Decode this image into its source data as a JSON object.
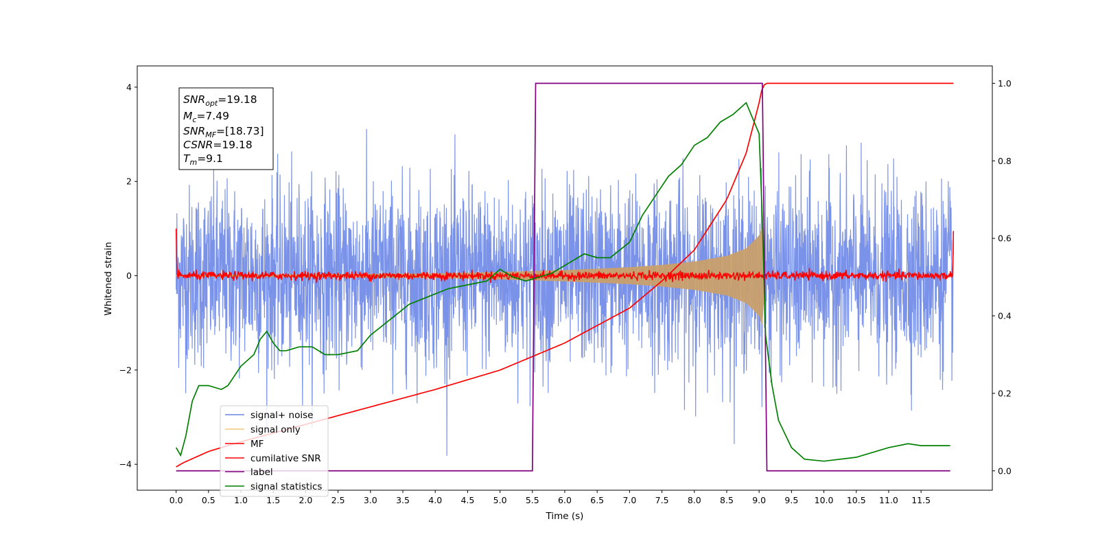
{
  "chart_data": {
    "type": "line",
    "xlabel": "Time (s)",
    "ylabel": "Whitened strain",
    "xlim": [
      -0.6,
      12.6
    ],
    "ylim": [
      -4.55,
      4.45
    ],
    "ylim_right": [
      -0.05,
      1.045
    ],
    "x_ticks": [
      "0.0",
      "0.5",
      "1.0",
      "1.5",
      "2.0",
      "2.5",
      "3.0",
      "3.5",
      "4.0",
      "4.5",
      "5.0",
      "5.5",
      "6.0",
      "6.5",
      "7.0",
      "7.5",
      "8.0",
      "8.5",
      "9.0",
      "9.5",
      "10.0",
      "10.5",
      "11.0",
      "11.5"
    ],
    "y_ticks_left": [
      "−4",
      "−2",
      "0",
      "2",
      "4"
    ],
    "y_ticks_right": [
      "0.0",
      "0.2",
      "0.4",
      "0.6",
      "0.8",
      "1.0"
    ],
    "legend_position": "lower-left",
    "colors": {
      "signal_noise": "#6b86e6",
      "signal_only": "#f5c97a",
      "mf": "#ff0000",
      "cumulative_snr": "#ff0000",
      "label": "#800080",
      "signal_statistics": "#008000"
    },
    "info_box": {
      "line1": {
        "main": "SNR",
        "sub": "opt",
        "value": "=19.18"
      },
      "line2": {
        "main": "M",
        "sub": "c",
        "value": "=7.49"
      },
      "line3": {
        "main": "SNR",
        "sub": "MF",
        "value": "=[18.73]"
      },
      "line4": {
        "main": "CSNR",
        "sub": "",
        "value": "=19.18"
      },
      "line5": {
        "main": "T",
        "sub": "m",
        "value": "=9.1"
      }
    },
    "series": [
      {
        "name": "signal+ noise",
        "axis": "left",
        "description_values": {
          "x_range": [
            0,
            12
          ],
          "approx_amplitude": 3.3
        }
      },
      {
        "name": "signal only",
        "axis": "left",
        "envelope": {
          "x": [
            0,
            2,
            4,
            5,
            6,
            7,
            7.5,
            8,
            8.5,
            8.8,
            9.0,
            9.05,
            9.1
          ],
          "amp": [
            0.02,
            0.03,
            0.05,
            0.08,
            0.12,
            0.18,
            0.23,
            0.3,
            0.42,
            0.58,
            0.85,
            1.05,
            0.0
          ]
        }
      },
      {
        "name": "MF",
        "axis": "left",
        "description_values": {
          "baseline": 0.0,
          "noise_amplitude": 0.08,
          "start_spike": 1.0,
          "end_spike": 0.95
        }
      },
      {
        "name": "cumilative SNR",
        "axis": "right",
        "x": [
          0,
          0.1,
          0.5,
          1.0,
          2.0,
          3.0,
          4.0,
          5.0,
          6.0,
          7.0,
          7.5,
          8.0,
          8.5,
          8.8,
          9.0,
          9.05,
          9.1,
          12.0
        ],
        "values": [
          0.01,
          0.02,
          0.05,
          0.075,
          0.12,
          0.165,
          0.21,
          0.26,
          0.33,
          0.42,
          0.49,
          0.57,
          0.7,
          0.82,
          0.95,
          0.99,
          1.0,
          1.0
        ]
      },
      {
        "name": "label",
        "axis": "right",
        "x": [
          0,
          5.5,
          5.55,
          9.05,
          9.12,
          11.95
        ],
        "values": [
          0,
          0,
          1,
          1,
          0,
          0
        ]
      },
      {
        "name": "signal statistics",
        "axis": "right",
        "x": [
          0,
          0.07,
          0.15,
          0.25,
          0.35,
          0.5,
          0.7,
          0.8,
          1.0,
          1.2,
          1.3,
          1.4,
          1.5,
          1.6,
          1.7,
          1.9,
          2.1,
          2.3,
          2.5,
          2.8,
          3.0,
          3.3,
          3.6,
          3.9,
          4.2,
          4.5,
          4.8,
          5.0,
          5.2,
          5.4,
          5.6,
          5.8,
          6.0,
          6.3,
          6.5,
          6.7,
          7.0,
          7.2,
          7.4,
          7.6,
          7.8,
          8.0,
          8.2,
          8.4,
          8.6,
          8.8,
          9.0,
          9.05,
          9.1,
          9.2,
          9.3,
          9.5,
          9.7,
          10.0,
          10.5,
          11.0,
          11.3,
          11.5,
          11.95
        ],
        "values": [
          0.06,
          0.04,
          0.09,
          0.18,
          0.22,
          0.22,
          0.21,
          0.22,
          0.27,
          0.3,
          0.34,
          0.36,
          0.33,
          0.31,
          0.31,
          0.32,
          0.32,
          0.3,
          0.3,
          0.31,
          0.35,
          0.39,
          0.43,
          0.45,
          0.47,
          0.48,
          0.49,
          0.52,
          0.5,
          0.49,
          0.5,
          0.51,
          0.53,
          0.56,
          0.55,
          0.55,
          0.59,
          0.66,
          0.71,
          0.76,
          0.79,
          0.84,
          0.86,
          0.9,
          0.92,
          0.95,
          0.87,
          0.65,
          0.35,
          0.22,
          0.13,
          0.06,
          0.03,
          0.025,
          0.035,
          0.06,
          0.07,
          0.065,
          0.065
        ]
      }
    ]
  }
}
